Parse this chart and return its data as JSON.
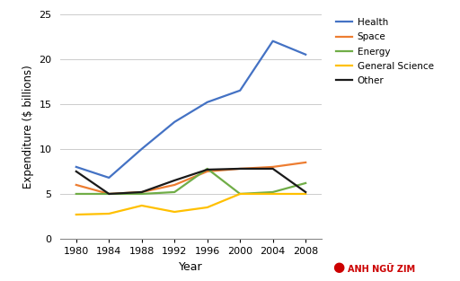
{
  "years": [
    1980,
    1984,
    1988,
    1992,
    1996,
    2000,
    2004,
    2008
  ],
  "series": {
    "Health": [
      8.0,
      6.8,
      10.0,
      13.0,
      15.2,
      16.5,
      22.0,
      20.5
    ],
    "Space": [
      6.0,
      5.0,
      5.2,
      6.0,
      7.5,
      7.8,
      8.0,
      8.5
    ],
    "Energy": [
      5.0,
      5.0,
      5.0,
      5.2,
      7.8,
      5.0,
      5.2,
      6.2
    ],
    "General Science": [
      2.7,
      2.8,
      3.7,
      3.0,
      3.5,
      5.0,
      5.0,
      5.0
    ],
    "Other": [
      7.5,
      5.0,
      5.2,
      6.5,
      7.7,
      7.8,
      7.8,
      5.2
    ]
  },
  "colors": {
    "Health": "#4472C4",
    "Space": "#ED7D31",
    "Energy": "#70AD47",
    "General Science": "#FFC000",
    "Other": "#1A1A1A"
  },
  "xlabel": "Year",
  "ylabel": "Expenditure ($ billions)",
  "ylim": [
    0,
    25
  ],
  "yticks": [
    0,
    5,
    10,
    15,
    20,
    25
  ],
  "xticks": [
    1980,
    1984,
    1988,
    1992,
    1996,
    2000,
    2004,
    2008
  ],
  "legend_order": [
    "Health",
    "Space",
    "Energy",
    "General Science",
    "Other"
  ],
  "bg_color": "#FFFFFF",
  "grid_color": "#CCCCCC",
  "watermark_text": "ANH NGỮ ZIM",
  "watermark_color": "#CC0000"
}
